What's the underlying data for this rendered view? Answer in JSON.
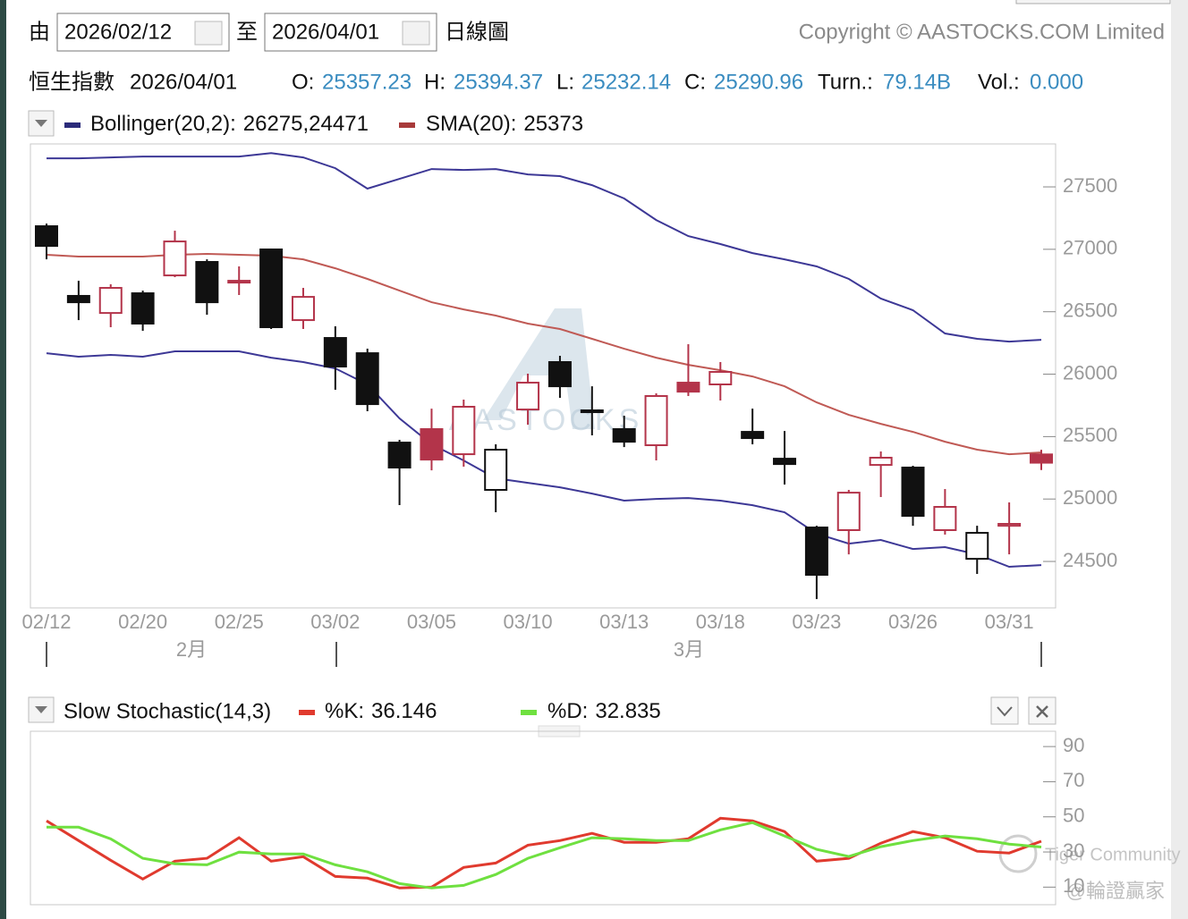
{
  "header": {
    "from_label": "由",
    "start_date": "2026/02/12",
    "to_label": "至",
    "end_date": "2026/04/01",
    "view": "日線圖",
    "copyright": "Copyright © AASTOCKS.COM Limited"
  },
  "info": {
    "name": "恒生指數",
    "o_label": "O:",
    "h_label": "H:",
    "l_label": "L:",
    "c_label": "C:",
    "turnover_label": "Turn.:",
    "turnover": "79.14B",
    "volume_label": "Vol.:",
    "volume": "0.000"
  },
  "watermarks": [
    "Tiger Community",
    "@輪證贏家"
  ],
  "chart_data": [
    {
      "type": "candlestick",
      "watermark": "AASTOCKS",
      "months": [
        "2月",
        "3月"
      ],
      "categories": [
        "02/12",
        null,
        null,
        "02/20",
        null,
        null,
        "02/25",
        null,
        null,
        "03/02",
        null,
        null,
        "03/05",
        null,
        null,
        "03/10",
        null,
        null,
        "03/13",
        null,
        null,
        "03/18",
        null,
        null,
        "03/23",
        null,
        null,
        "03/26",
        null,
        null,
        "03/31",
        null
      ],
      "open": [
        27185,
        26627,
        26490,
        26648,
        26791,
        26899,
        26734,
        26999,
        26433,
        26290,
        26168,
        25452,
        25560,
        25359,
        25073,
        25717,
        26097,
        25710,
        25560,
        25431,
        25932,
        25918,
        25538,
        25323,
        24772,
        24751,
        25273,
        25252,
        24751,
        24521,
        24786,
        25357.23
      ],
      "high": [
        27206,
        26748,
        26720,
        26669,
        27149,
        26920,
        26863,
        27006,
        26691,
        26383,
        26204,
        25474,
        25724,
        25796,
        25438,
        26004,
        26147,
        25903,
        25667,
        25846,
        26240,
        26097,
        25724,
        25545,
        24786,
        25073,
        25381,
        25266,
        25080,
        24786,
        24973,
        25394.37
      ],
      "low": [
        26920,
        26433,
        26376,
        26347,
        26777,
        26476,
        26634,
        26362,
        26362,
        25875,
        25703,
        24951,
        25230,
        25259,
        24894,
        25595,
        25810,
        25510,
        25416,
        25309,
        25825,
        25789,
        25438,
        25116,
        24199,
        24557,
        25016,
        24786,
        24715,
        24400,
        24557,
        25232.14
      ],
      "close": [
        27027,
        26576,
        26691,
        26405,
        27063,
        26576,
        26748,
        26376,
        26619,
        26061,
        25760,
        25252,
        25316,
        25739,
        25395,
        25932,
        25903,
        25696,
        25459,
        25825,
        25860,
        26018,
        25488,
        25280,
        24393,
        25051,
        25331,
        24865,
        24937,
        24729,
        24801,
        25290.96
      ],
      "up_color": "#b3344a",
      "down_color": "#111111",
      "overlays": [
        {
          "name": "Bollinger(20,2):",
          "color": "#3d3896",
          "separator": ",",
          "upper": [
            27729,
            27729,
            27736,
            27743,
            27743,
            27743,
            27743,
            27771,
            27736,
            27650,
            27486,
            27564,
            27643,
            27636,
            27643,
            27600,
            27586,
            27514,
            27407,
            27235,
            27106,
            27042,
            26970,
            26920,
            26863,
            26763,
            26605,
            26512,
            26326,
            26283,
            26261,
            26275
          ],
          "lower": [
            26168,
            26140,
            26154,
            26140,
            26183,
            26183,
            26183,
            26132,
            26097,
            26046,
            25918,
            25646,
            25438,
            25309,
            25166,
            25130,
            25094,
            25044,
            24987,
            25001,
            25008,
            24987,
            24951,
            24894,
            24722,
            24643,
            24672,
            24600,
            24615,
            24557,
            24457,
            24471
          ]
        },
        {
          "name": "SMA(20):",
          "color": "#c05a55",
          "values": [
            26956,
            26942,
            26942,
            26942,
            26956,
            26963,
            26956,
            26949,
            26920,
            26848,
            26763,
            26669,
            26576,
            26519,
            26469,
            26405,
            26362,
            26283,
            26204,
            26132,
            26075,
            26032,
            25982,
            25903,
            25774,
            25674,
            25602,
            25538,
            25459,
            25395,
            25359,
            25373
          ]
        }
      ],
      "ylim": [
        24128,
        27844
      ],
      "yticks": [
        24500,
        25000,
        25500,
        26000,
        26500,
        27000,
        27500
      ]
    },
    {
      "type": "line",
      "title": "Slow Stochastic(14,3)",
      "series": [
        {
          "name": "%K:",
          "color": "#e03a2e",
          "values": [
            47.7,
            36.5,
            25.3,
            14.6,
            24.8,
            26.4,
            38.1,
            24.8,
            27.3,
            16.1,
            15.1,
            9.5,
            10,
            21.2,
            23.7,
            33.9,
            36.5,
            40.6,
            35.5,
            35.5,
            37.5,
            49.2,
            47.7,
            41.6,
            24.8,
            26.4,
            35,
            41.6,
            38.1,
            30.4,
            29.4,
            36.146
          ]
        },
        {
          "name": "%D:",
          "color": "#6fe040",
          "values": [
            44.1,
            44.1,
            37.5,
            26.4,
            23.3,
            22.7,
            29.9,
            28.9,
            28.9,
            22.7,
            18.7,
            12,
            9.5,
            11,
            17.2,
            26.4,
            32.4,
            38.1,
            37.5,
            36.5,
            36.5,
            42.6,
            46.7,
            39.1,
            31.5,
            27.4,
            33,
            36.5,
            39.1,
            37.5,
            34.5,
            32.835
          ]
        }
      ],
      "ylim": [
        0,
        98.7
      ],
      "yticks": [
        10,
        30,
        50,
        70,
        90
      ]
    }
  ]
}
